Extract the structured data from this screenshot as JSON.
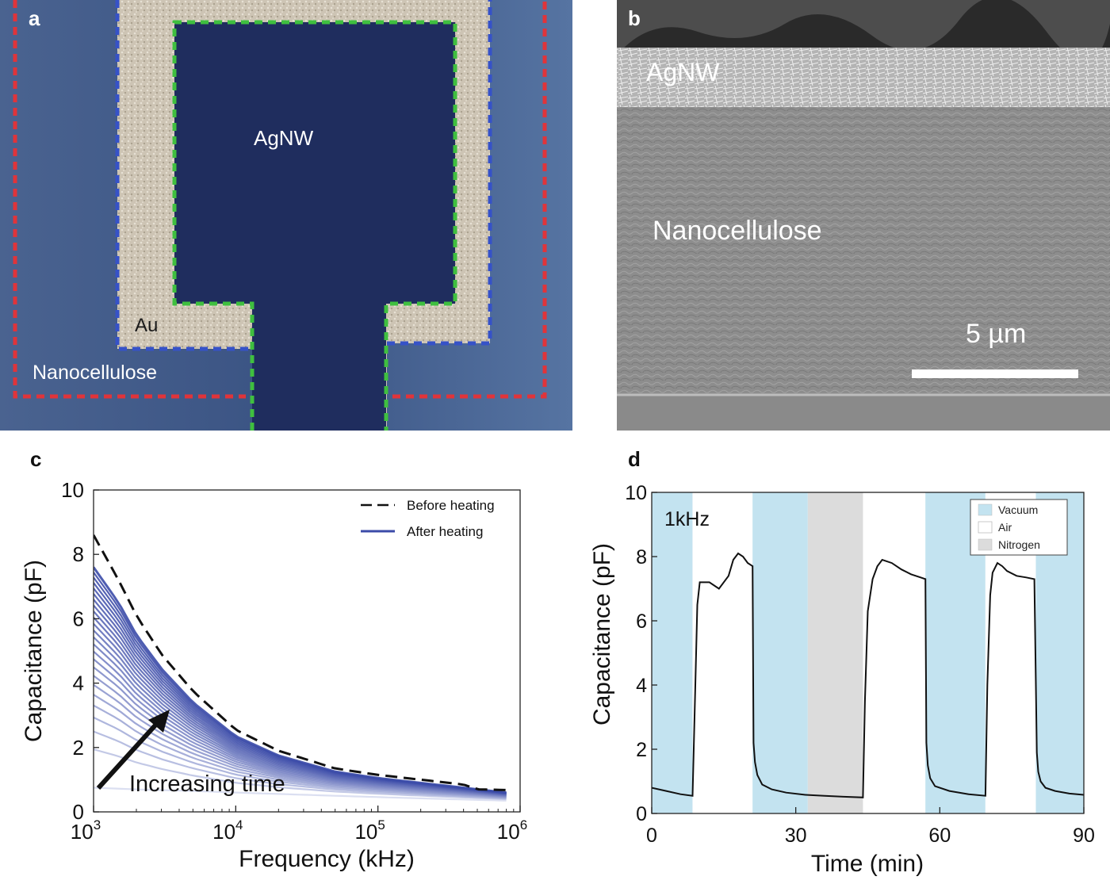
{
  "panels": {
    "a": {
      "letter": "a",
      "labels": {
        "agnw": "AgNW",
        "au": "Au",
        "nanocellulose": "Nanocellulose"
      },
      "colors": {
        "outline_red": "#e0343a",
        "outline_blue": "#3652c8",
        "outline_green": "#3fbf3f",
        "au_fill": "#cfc7b8",
        "substrate": "#3b5380",
        "agnw_fill": "#1d2a5b"
      }
    },
    "b": {
      "letter": "b",
      "labels": {
        "agnw": "AgNW",
        "nanocellulose": "Nanocellulose",
        "scale": "5 µm"
      }
    },
    "c": {
      "letter": "c",
      "ylabel": "Capacitance (pF)",
      "xlabel": "Frequency (kHz)",
      "annotation": "Increasing time",
      "legend": [
        {
          "label": "Before heating",
          "style": "dashed",
          "color": "#111111"
        },
        {
          "label": "After heating",
          "style": "solid",
          "color": "#3b4ba8"
        }
      ]
    },
    "d": {
      "letter": "d",
      "ylabel": "Capacitance (pF)",
      "xlabel": "Time (min)",
      "annotation": "1kHz",
      "legend": [
        {
          "label": "Vacuum",
          "color": "#c3e3f0"
        },
        {
          "label": "Air",
          "color": "#ffffff"
        },
        {
          "label": "Nitrogen",
          "color": "#dcdcdc"
        }
      ]
    }
  },
  "chart_data": [
    {
      "panel": "c",
      "type": "line",
      "xscale": "log",
      "xlim": [
        1000,
        1000000
      ],
      "ylim": [
        0,
        10
      ],
      "xticks": [
        {
          "base": "10",
          "exp": "3"
        },
        {
          "base": "10",
          "exp": "4"
        },
        {
          "base": "10",
          "exp": "5"
        },
        {
          "base": "10",
          "exp": "6"
        }
      ],
      "yticks": [
        0,
        2,
        4,
        6,
        8,
        10
      ],
      "before_heating": {
        "x": [
          1000,
          1500,
          2000,
          3000,
          5000,
          10000,
          20000,
          50000,
          100000,
          200000,
          400000,
          500000,
          800000
        ],
        "y": [
          8.6,
          7.2,
          6.1,
          4.9,
          3.75,
          2.55,
          1.9,
          1.35,
          1.15,
          1.0,
          0.85,
          0.7,
          0.68
        ]
      },
      "after_heating": {
        "curve_count": 25,
        "first": {
          "x": [
            1000,
            2000,
            5000,
            10000,
            50000,
            200000,
            800000
          ],
          "y": [
            0.75,
            0.7,
            0.65,
            0.6,
            0.5,
            0.42,
            0.35
          ]
        },
        "last": {
          "x": [
            1000,
            1500,
            2000,
            3000,
            5000,
            10000,
            20000,
            50000,
            100000,
            200000,
            400000,
            800000
          ],
          "y": [
            7.6,
            6.5,
            5.5,
            4.45,
            3.4,
            2.35,
            1.75,
            1.25,
            1.05,
            0.9,
            0.75,
            0.6
          ]
        }
      }
    },
    {
      "panel": "d",
      "type": "line",
      "xlim": [
        0,
        90
      ],
      "ylim": [
        0,
        10
      ],
      "xticks": [
        0,
        30,
        60,
        90
      ],
      "yticks": [
        0,
        2,
        4,
        6,
        8,
        10
      ],
      "regions": [
        {
          "env": "Vacuum",
          "start": 0,
          "end": 8.5
        },
        {
          "env": "Air",
          "start": 8.5,
          "end": 21
        },
        {
          "env": "Vacuum",
          "start": 21,
          "end": 32.5
        },
        {
          "env": "Nitrogen",
          "start": 32.5,
          "end": 44
        },
        {
          "env": "Air",
          "start": 44,
          "end": 57
        },
        {
          "env": "Vacuum",
          "start": 57,
          "end": 69.5
        },
        {
          "env": "Air",
          "start": 69.5,
          "end": 80
        },
        {
          "env": "Vacuum",
          "start": 80,
          "end": 90
        }
      ],
      "series": [
        {
          "x": [
            0,
            3,
            6,
            8.5,
            9,
            9.5,
            10,
            12,
            14,
            16,
            17,
            18,
            19,
            20,
            21,
            21.2,
            21.5,
            22,
            23,
            25,
            28,
            32,
            36,
            40,
            44,
            44.4,
            45,
            46,
            47,
            48,
            50,
            52,
            54,
            56,
            57,
            57.2,
            57.5,
            58,
            59,
            62,
            66,
            69.5,
            69.9,
            70.5,
            71,
            72,
            73,
            74,
            76,
            78,
            79.7,
            80,
            80.2,
            80.5,
            81,
            82,
            84,
            87,
            90
          ],
          "y": [
            0.8,
            0.7,
            0.6,
            0.55,
            3.5,
            6.5,
            7.2,
            7.2,
            7.0,
            7.4,
            7.9,
            8.1,
            8.0,
            7.8,
            7.7,
            2.2,
            1.6,
            1.2,
            0.9,
            0.75,
            0.65,
            0.58,
            0.55,
            0.52,
            0.5,
            3.5,
            6.3,
            7.3,
            7.7,
            7.9,
            7.8,
            7.6,
            7.45,
            7.35,
            7.3,
            2.2,
            1.5,
            1.1,
            0.85,
            0.7,
            0.6,
            0.55,
            4.0,
            6.8,
            7.5,
            7.8,
            7.7,
            7.55,
            7.4,
            7.35,
            7.3,
            4.2,
            1.9,
            1.3,
            1.0,
            0.8,
            0.7,
            0.62,
            0.58
          ]
        }
      ]
    }
  ]
}
